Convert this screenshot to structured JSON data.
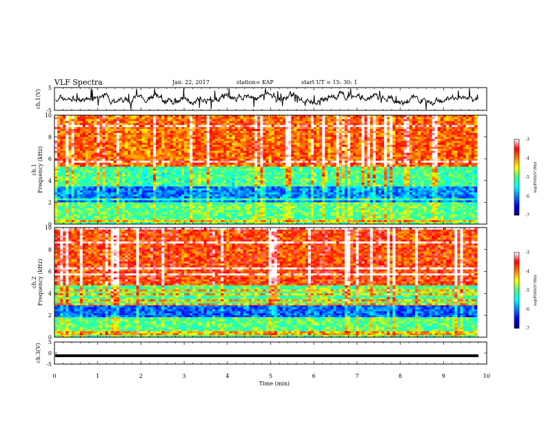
{
  "header": {
    "title": "VLF Spectra",
    "date": "Jan. 22, 2017",
    "station": "station= KAP",
    "start": "start UT =  15: 30: 1"
  },
  "colors": {
    "spectrum": [
      "#00007f",
      "#0000ff",
      "#0080ff",
      "#00ffff",
      "#40ff80",
      "#ffff00",
      "#ff8000",
      "#ff0000",
      "#ffffff"
    ],
    "trace": "#000000"
  },
  "chart_data": [
    {
      "type": "line",
      "ylabel": "ch.1(V)",
      "ylim": [
        -5,
        5
      ],
      "yticks": [
        "5",
        "-5"
      ],
      "xlim": [
        0,
        10
      ],
      "note_trace": "noisy waveform, amplitude roughly -4 to +4 V"
    },
    {
      "type": "heatmap",
      "ylabel": "ch.1\nFrequency (kHz)",
      "ylim": [
        0,
        10
      ],
      "yticks": [
        "0",
        "2",
        "4",
        "6",
        "8",
        "10"
      ],
      "xlim": [
        0,
        10
      ],
      "colorbar": {
        "label": "log(PSD)(V²/Hz)",
        "range": [
          -7,
          -3
        ],
        "ticks": [
          "-3",
          "-4",
          "-5",
          "-6",
          "-7"
        ]
      },
      "bands": [
        {
          "from": 0,
          "to": 2,
          "value": -5.0
        },
        {
          "from": 2,
          "to": 3.5,
          "value": -6.0
        },
        {
          "from": 3.5,
          "to": 5.3,
          "value": -5.1
        },
        {
          "from": 5.3,
          "to": 10,
          "value": -3.9
        }
      ]
    },
    {
      "type": "heatmap",
      "ylabel": "ch.2\nFrequency (kHz)",
      "ylim": [
        0,
        10
      ],
      "yticks": [
        "0",
        "2",
        "4",
        "6",
        "8",
        "10"
      ],
      "xlim": [
        0,
        10
      ],
      "colorbar": {
        "label": "log(PSD)(V²/Hz)",
        "range": [
          -7,
          -3
        ],
        "ticks": [
          "-3",
          "-4",
          "-5",
          "-6",
          "-7"
        ]
      },
      "bands": [
        {
          "from": 0,
          "to": 1.8,
          "value": -5.0
        },
        {
          "from": 1.8,
          "to": 3,
          "value": -6.1
        },
        {
          "from": 3,
          "to": 4.8,
          "value": -5.0
        },
        {
          "from": 4.8,
          "to": 10,
          "value": -3.7
        }
      ]
    },
    {
      "type": "line",
      "ylabel": "ch.3(V)",
      "ylim": [
        -5,
        5
      ],
      "yticks": [
        "5",
        "0",
        "-5"
      ],
      "xlim": [
        0,
        10
      ],
      "constant_value": -1.2
    }
  ],
  "xaxis": {
    "label": "Time (min)",
    "ticks": [
      "0",
      "1",
      "2",
      "3",
      "4",
      "5",
      "6",
      "7",
      "8",
      "9",
      "10"
    ]
  }
}
